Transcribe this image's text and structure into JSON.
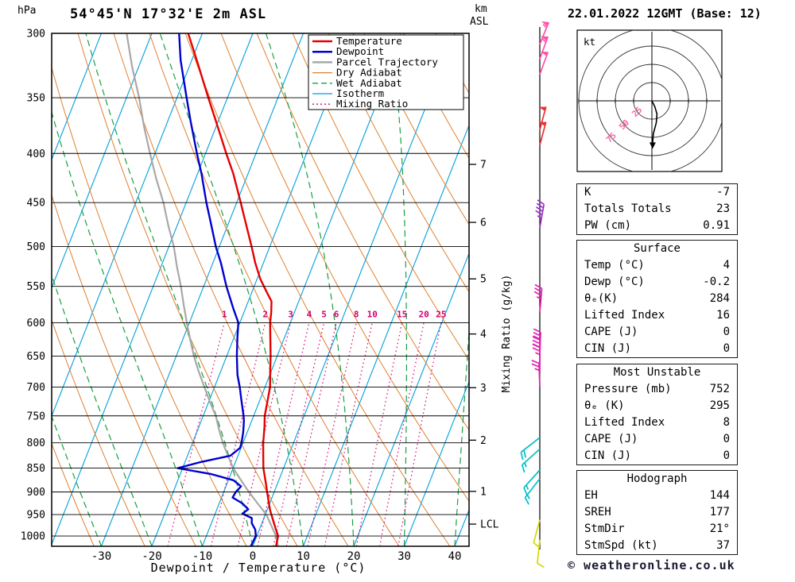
{
  "header": {
    "station": "54°45'N 17°32'E 2m ASL",
    "date": "22.01.2022 12GMT (Base: 12)"
  },
  "footer": {
    "text": "© weatheronline.co.uk"
  },
  "axes": {
    "pressure_unit": "hPa",
    "km_label": "km",
    "asl_label": "ASL",
    "x_label": "Dewpoint / Temperature (°C)",
    "mixing_axis_label": "Mixing Ratio (g/kg)",
    "lcl_label": "LCL",
    "lcl_pressure": 972,
    "pressure_ticks": [
      300,
      350,
      400,
      450,
      500,
      550,
      600,
      650,
      700,
      750,
      800,
      850,
      900,
      950,
      1000
    ],
    "temp_ticks": [
      -30,
      -20,
      -10,
      0,
      10,
      20,
      30,
      40
    ],
    "km_ticks": [
      1,
      2,
      3,
      4,
      5,
      6,
      7
    ]
  },
  "legend": {
    "entries": [
      {
        "label": "Temperature",
        "color": "#e60000",
        "style": "solid",
        "width": 2.5
      },
      {
        "label": "Dewpoint",
        "color": "#0000d2",
        "style": "solid",
        "width": 2.5
      },
      {
        "label": "Parcel Trajectory",
        "color": "#a8a8a8",
        "style": "solid",
        "width": 2.5
      },
      {
        "label": "Dry Adiabat",
        "color": "#e08030",
        "style": "solid",
        "width": 1.3
      },
      {
        "label": "Wet Adiabat",
        "color": "#18a040",
        "style": "dashed",
        "width": 1.3
      },
      {
        "label": "Isotherm",
        "color": "#00a0dc",
        "style": "solid",
        "width": 1.3
      },
      {
        "label": "Mixing Ratio",
        "color": "#d4006e",
        "style": "dotted",
        "width": 1.3
      }
    ]
  },
  "chart_data": {
    "type": "line",
    "subtype": "skewt-logp-sounding",
    "pressure_range": [
      300,
      1025
    ],
    "temp_axis_range_c": [
      -40,
      42
    ],
    "isotherm_step_c": 10,
    "isotherm_range_c": [
      -80,
      40
    ],
    "dry_adiabat_theta_k": [
      513,
      523,
      533,
      543,
      553,
      563,
      573,
      583,
      593,
      603,
      613,
      623,
      633,
      643,
      653,
      663
    ],
    "dry_adiabat_theta_note": "drawn every 10K; values listed as K = start C + 273",
    "wet_adiabat_start_c": [
      -40,
      -30,
      -20,
      -10,
      0,
      10,
      20,
      30,
      40
    ],
    "mixing_ratio_lines_gkg": [
      1,
      2,
      3,
      4,
      5,
      6,
      8,
      10,
      15,
      20,
      25
    ],
    "temperature_profile_p_c": [
      [
        1025,
        4.6
      ],
      [
        1000,
        4.2
      ],
      [
        980,
        3.0
      ],
      [
        960,
        1.8
      ],
      [
        940,
        0.6
      ],
      [
        920,
        -0.4
      ],
      [
        900,
        -1.4
      ],
      [
        880,
        -2.4
      ],
      [
        850,
        -4.0
      ],
      [
        820,
        -5.2
      ],
      [
        800,
        -6.0
      ],
      [
        770,
        -7.0
      ],
      [
        750,
        -7.8
      ],
      [
        720,
        -8.5
      ],
      [
        700,
        -9.0
      ],
      [
        670,
        -10.4
      ],
      [
        650,
        -11.3
      ],
      [
        620,
        -12.9
      ],
      [
        600,
        -14.0
      ],
      [
        585,
        -14.6
      ],
      [
        570,
        -15.4
      ],
      [
        555,
        -17.4
      ],
      [
        540,
        -19.4
      ],
      [
        520,
        -21.6
      ],
      [
        500,
        -23.6
      ],
      [
        470,
        -26.9
      ],
      [
        450,
        -29.2
      ],
      [
        420,
        -32.9
      ],
      [
        400,
        -35.9
      ],
      [
        370,
        -40.5
      ],
      [
        350,
        -43.8
      ],
      [
        320,
        -49.0
      ],
      [
        300,
        -52.8
      ]
    ],
    "dewpoint_profile_p_c": [
      [
        1025,
        -0.4
      ],
      [
        1000,
        -0.2
      ],
      [
        985,
        -0.8
      ],
      [
        970,
        -2.0
      ],
      [
        958,
        -2.4
      ],
      [
        948,
        -4.6
      ],
      [
        938,
        -3.8
      ],
      [
        925,
        -5.4
      ],
      [
        912,
        -7.8
      ],
      [
        900,
        -7.6
      ],
      [
        888,
        -7.0
      ],
      [
        875,
        -9.0
      ],
      [
        862,
        -14.0
      ],
      [
        850,
        -21.0
      ],
      [
        838,
        -17.0
      ],
      [
        825,
        -11.5
      ],
      [
        810,
        -10.2
      ],
      [
        800,
        -10.3
      ],
      [
        780,
        -10.8
      ],
      [
        760,
        -11.5
      ],
      [
        750,
        -12.0
      ],
      [
        720,
        -13.8
      ],
      [
        700,
        -15.0
      ],
      [
        680,
        -16.4
      ],
      [
        650,
        -18.0
      ],
      [
        620,
        -19.4
      ],
      [
        600,
        -20.3
      ],
      [
        580,
        -22.4
      ],
      [
        550,
        -25.5
      ],
      [
        520,
        -28.4
      ],
      [
        500,
        -30.7
      ],
      [
        470,
        -33.8
      ],
      [
        450,
        -36.0
      ],
      [
        420,
        -39.2
      ],
      [
        400,
        -41.7
      ],
      [
        370,
        -45.5
      ],
      [
        350,
        -48.1
      ],
      [
        320,
        -52.2
      ],
      [
        300,
        -54.6
      ]
    ],
    "parcel_profile_p_c": [
      [
        1025,
        5.0
      ],
      [
        1000,
        3.8
      ],
      [
        972,
        1.8
      ],
      [
        950,
        0.2
      ],
      [
        925,
        -2.4
      ],
      [
        900,
        -5.0
      ],
      [
        875,
        -7.5
      ],
      [
        850,
        -10.0
      ],
      [
        825,
        -12.0
      ],
      [
        800,
        -14.0
      ],
      [
        775,
        -15.8
      ],
      [
        750,
        -17.5
      ],
      [
        725,
        -19.8
      ],
      [
        700,
        -22.0
      ],
      [
        675,
        -24.3
      ],
      [
        650,
        -26.5
      ],
      [
        625,
        -28.5
      ],
      [
        600,
        -30.5
      ],
      [
        575,
        -32.5
      ],
      [
        550,
        -34.5
      ],
      [
        525,
        -36.8
      ],
      [
        500,
        -39.0
      ],
      [
        475,
        -41.8
      ],
      [
        450,
        -44.5
      ],
      [
        425,
        -47.8
      ],
      [
        400,
        -51.0
      ],
      [
        375,
        -54.3
      ],
      [
        350,
        -57.5
      ],
      [
        325,
        -61.3
      ],
      [
        300,
        -65.0
      ]
    ]
  },
  "wind_barbs": [
    {
      "p": 308,
      "speed": 55,
      "dir": 22,
      "color": "#ff4fa7"
    },
    {
      "p": 319,
      "speed": 55,
      "dir": 20,
      "color": "#ff4fa7"
    },
    {
      "p": 331,
      "speed": 50,
      "dir": 20,
      "color": "#ff4fa7"
    },
    {
      "p": 378,
      "speed": 50,
      "dir": 15,
      "color": "#f03030"
    },
    {
      "p": 392,
      "speed": 50,
      "dir": 15,
      "color": "#f03030"
    },
    {
      "p": 478,
      "speed": 45,
      "dir": 10,
      "color": "#9b30c8"
    },
    {
      "p": 585,
      "speed": 35,
      "dir": 5,
      "color": "#e020b0"
    },
    {
      "p": 650,
      "speed": 30,
      "dir": 2,
      "color": "#e020b0"
    },
    {
      "p": 662,
      "speed": 30,
      "dir": 0,
      "color": "#e020b0"
    },
    {
      "p": 674,
      "speed": 25,
      "dir": 0,
      "color": "#e020b0"
    },
    {
      "p": 700,
      "speed": 25,
      "dir": 358,
      "color": "#e020b0"
    },
    {
      "p": 790,
      "speed": 20,
      "dir": 232,
      "color": "#00c0c8"
    },
    {
      "p": 812,
      "speed": 18,
      "dir": 228,
      "color": "#00c0c8"
    },
    {
      "p": 854,
      "speed": 15,
      "dir": 222,
      "color": "#00c0c8"
    },
    {
      "p": 872,
      "speed": 15,
      "dir": 218,
      "color": "#00c0c8"
    },
    {
      "p": 962,
      "speed": 10,
      "dir": 195,
      "color": "#d8d800"
    },
    {
      "p": 1009,
      "speed": 10,
      "dir": 186,
      "color": "#d8d800"
    }
  ],
  "hodograph": {
    "unit": "kt",
    "rings_kt": [
      25,
      50,
      75,
      100
    ],
    "ring_labels": [
      "25",
      "50",
      "75"
    ],
    "label_color": "#ff64a8",
    "trace_kt": [
      [
        0,
        0
      ],
      [
        4,
        8
      ],
      [
        7,
        18
      ],
      [
        6,
        30
      ],
      [
        2,
        45
      ],
      [
        1,
        58
      ]
    ]
  },
  "tables": {
    "info": {
      "rows": [
        {
          "label": "K",
          "value": "-7"
        },
        {
          "label": "Totals Totals",
          "value": "23"
        },
        {
          "label": "PW (cm)",
          "value": "0.91"
        }
      ]
    },
    "surface": {
      "header": "Surface",
      "rows": [
        {
          "label": "Temp (°C)",
          "value": "4"
        },
        {
          "label": "Dewp (°C)",
          "value": "-0.2"
        },
        {
          "label": "θₑ(K)",
          "value": "284"
        },
        {
          "label": "Lifted Index",
          "value": "16"
        },
        {
          "label": "CAPE (J)",
          "value": "0"
        },
        {
          "label": "CIN (J)",
          "value": "0"
        }
      ]
    },
    "most_unstable": {
      "header": "Most Unstable",
      "rows": [
        {
          "label": "Pressure (mb)",
          "value": "752"
        },
        {
          "label": "θₑ (K)",
          "value": "295"
        },
        {
          "label": "Lifted Index",
          "value": "8"
        },
        {
          "label": "CAPE (J)",
          "value": "0"
        },
        {
          "label": "CIN (J)",
          "value": "0"
        }
      ]
    },
    "hodograph": {
      "header": "Hodograph",
      "rows": [
        {
          "label": "EH",
          "value": "144"
        },
        {
          "label": "SREH",
          "value": "177"
        },
        {
          "label": "StmDir",
          "value": "21°"
        },
        {
          "label": "StmSpd (kt)",
          "value": "37"
        }
      ]
    }
  }
}
